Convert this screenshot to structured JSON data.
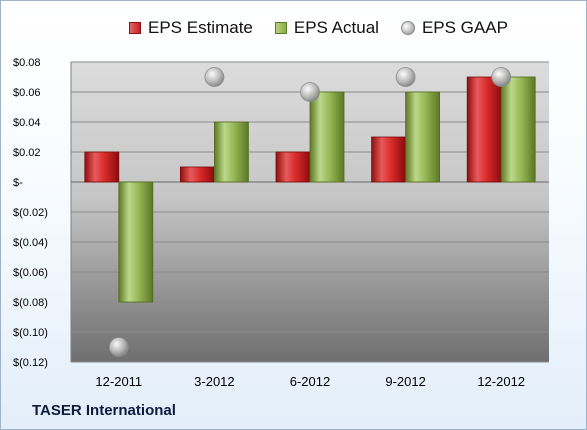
{
  "company": "TASER International",
  "legend": {
    "estimate": "EPS Estimate",
    "actual": "EPS Actual",
    "gaap": "EPS GAAP"
  },
  "colors": {
    "estimate": "#c81e1e",
    "actual": "#8cad48",
    "gaap": "#b0b0b0"
  },
  "chart_data": {
    "type": "bar",
    "categories": [
      "12-2011",
      "3-2012",
      "6-2012",
      "9-2012",
      "12-2012"
    ],
    "series": [
      {
        "name": "EPS Estimate",
        "kind": "bar",
        "values": [
          0.02,
          0.01,
          0.02,
          0.03,
          0.07
        ]
      },
      {
        "name": "EPS Actual",
        "kind": "bar",
        "values": [
          -0.08,
          0.04,
          0.06,
          0.06,
          0.07
        ]
      },
      {
        "name": "EPS GAAP",
        "kind": "marker",
        "values": [
          -0.11,
          0.07,
          0.06,
          0.07,
          0.07
        ]
      }
    ],
    "ylim": [
      -0.12,
      0.08
    ],
    "yticks": [
      0.08,
      0.06,
      0.04,
      0.02,
      0,
      -0.02,
      -0.04,
      -0.06,
      -0.08,
      -0.1,
      -0.12
    ],
    "ytick_labels": [
      "$0.08",
      "$0.06",
      "$0.04",
      "$0.02",
      "$-",
      "$(0.02)",
      "$(0.04)",
      "$(0.06)",
      "$(0.08)",
      "$(0.10)",
      "$(0.12)"
    ],
    "grid": true,
    "legend_position": "top"
  }
}
